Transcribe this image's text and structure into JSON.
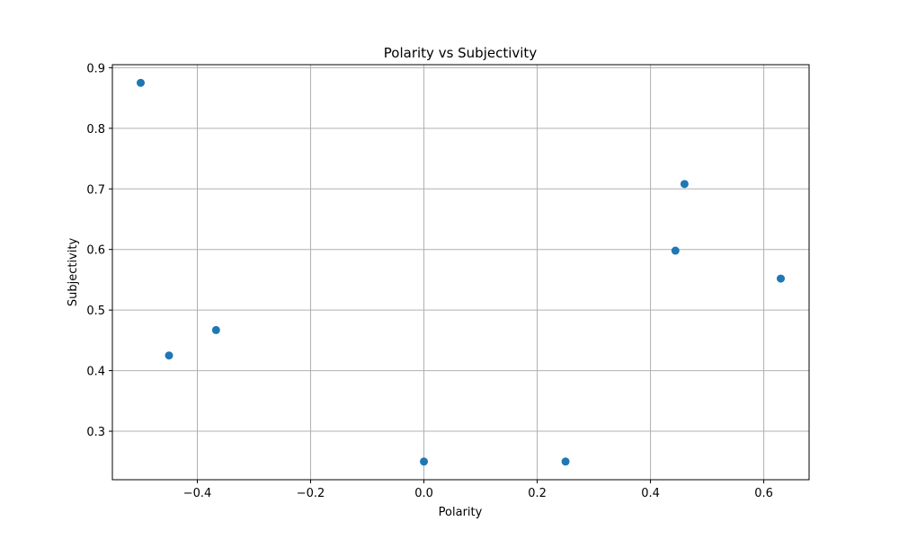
{
  "chart_data": {
    "type": "scatter",
    "title": "Polarity vs Subjectivity",
    "xlabel": "Polarity",
    "ylabel": "Subjectivity",
    "xlim": [
      -0.55,
      0.68
    ],
    "ylim": [
      0.22,
      0.905
    ],
    "grid": true,
    "marker_color": "#1f77b4",
    "x_ticks": [
      {
        "value": -0.4,
        "label": "−0.4"
      },
      {
        "value": -0.2,
        "label": "−0.2"
      },
      {
        "value": 0.0,
        "label": "0.0"
      },
      {
        "value": 0.2,
        "label": "0.2"
      },
      {
        "value": 0.4,
        "label": "0.4"
      },
      {
        "value": 0.6,
        "label": "0.6"
      }
    ],
    "y_ticks": [
      {
        "value": 0.3,
        "label": "0.3"
      },
      {
        "value": 0.4,
        "label": "0.4"
      },
      {
        "value": 0.5,
        "label": "0.5"
      },
      {
        "value": 0.6,
        "label": "0.6"
      },
      {
        "value": 0.7,
        "label": "0.7"
      },
      {
        "value": 0.8,
        "label": "0.8"
      },
      {
        "value": 0.9,
        "label": "0.9"
      }
    ],
    "points": [
      {
        "x": -0.5,
        "y": 0.875
      },
      {
        "x": -0.45,
        "y": 0.425
      },
      {
        "x": -0.367,
        "y": 0.467
      },
      {
        "x": 0.0,
        "y": 0.25
      },
      {
        "x": 0.25,
        "y": 0.25
      },
      {
        "x": 0.444,
        "y": 0.598
      },
      {
        "x": 0.46,
        "y": 0.708
      },
      {
        "x": 0.63,
        "y": 0.552
      }
    ]
  }
}
